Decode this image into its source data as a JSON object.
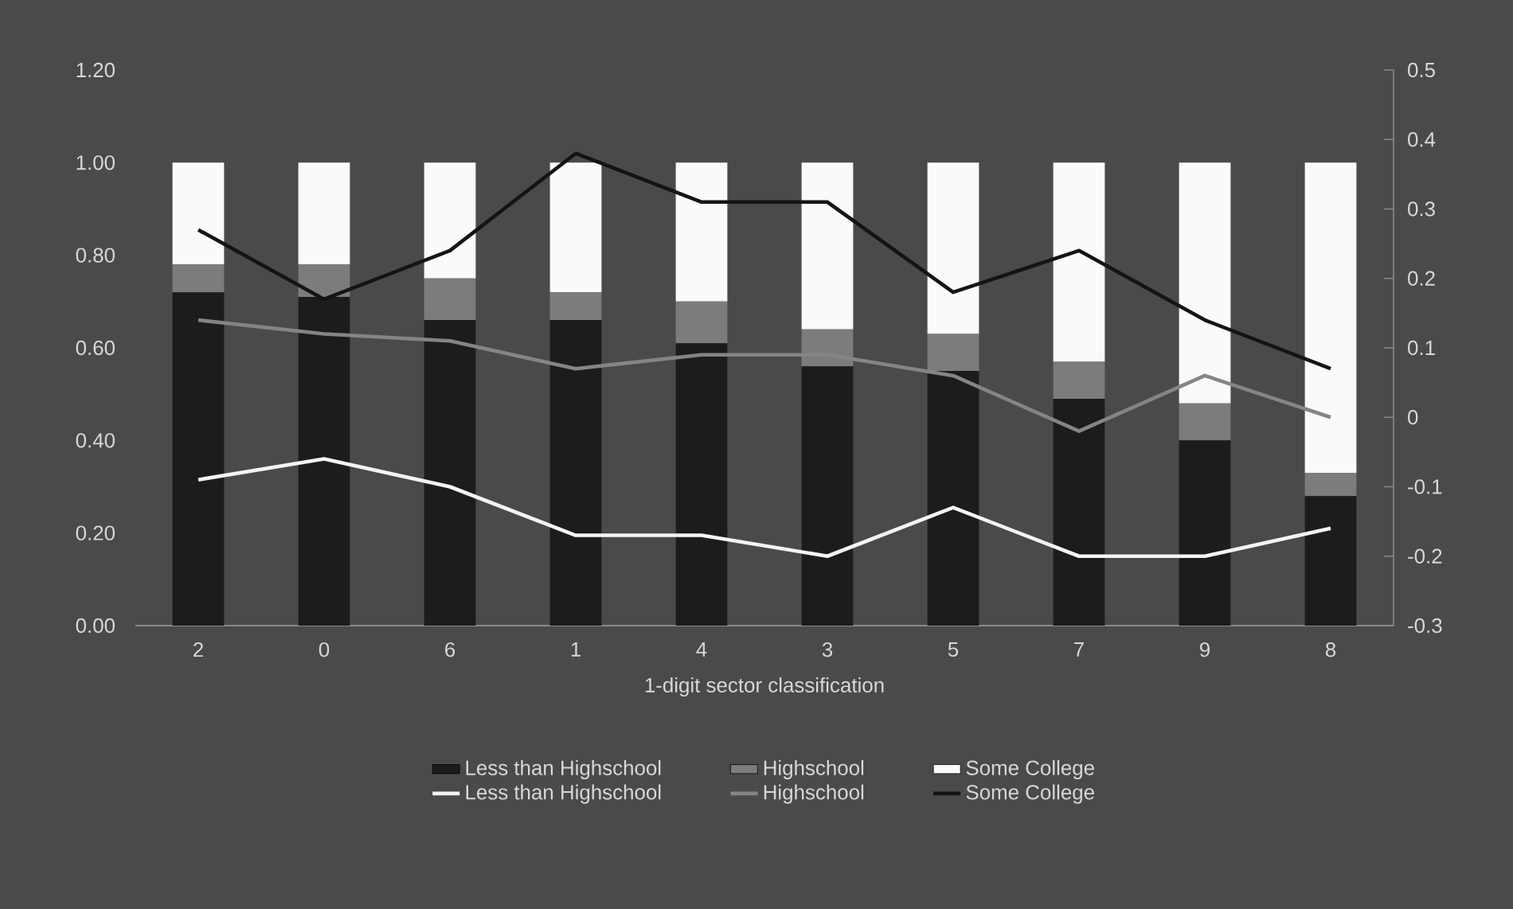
{
  "chart_data": {
    "type": "bar",
    "stacked": true,
    "xlabel": "1-digit sector classification",
    "categories": [
      "2",
      "0",
      "6",
      "1",
      "4",
      "3",
      "5",
      "7",
      "9",
      "8"
    ],
    "ylim": [
      0,
      1.2
    ],
    "yticks": [
      {
        "value": 0,
        "label": "0.00"
      },
      {
        "value": 0.2,
        "label": "0.20"
      },
      {
        "value": 0.4,
        "label": "0.40"
      },
      {
        "value": 0.6,
        "label": "0.60"
      },
      {
        "value": 0.8,
        "label": "0.80"
      },
      {
        "value": 1,
        "label": "1.00"
      },
      {
        "value": 1.2,
        "label": "1.20"
      }
    ],
    "y2lim": [
      -0.3,
      0.5
    ],
    "y2ticks": [
      -0.3,
      -0.2,
      -0.1,
      0,
      0.1,
      0.2,
      0.3,
      0.4,
      0.5
    ],
    "legend": "bottom",
    "series": [
      {
        "name": "Less than Highschool",
        "type": "bar",
        "color": "#1c1c1c",
        "values": [
          0.72,
          0.71,
          0.66,
          0.66,
          0.61,
          0.56,
          0.55,
          0.49,
          0.4,
          0.28
        ]
      },
      {
        "name": "Highschool",
        "type": "bar",
        "color": "#7c7c7c",
        "values": [
          0.06,
          0.07,
          0.09,
          0.06,
          0.09,
          0.08,
          0.08,
          0.08,
          0.08,
          0.05
        ]
      },
      {
        "name": "Some College",
        "type": "bar",
        "color": "#fafafa",
        "values": [
          0.22,
          0.22,
          0.25,
          0.28,
          0.3,
          0.36,
          0.37,
          0.43,
          0.52,
          0.67
        ]
      },
      {
        "name": "Less than Highschool",
        "type": "line",
        "axis": "y2",
        "color": "#f4f4f4",
        "values": [
          -0.09,
          -0.06,
          -0.1,
          -0.17,
          -0.17,
          -0.2,
          -0.13,
          -0.2,
          -0.2,
          -0.16
        ]
      },
      {
        "name": "Highschool",
        "type": "line",
        "axis": "y2",
        "color": "#858585",
        "values": [
          0.14,
          0.12,
          0.11,
          0.07,
          0.09,
          0.09,
          0.06,
          -0.02,
          0.06,
          0.0
        ]
      },
      {
        "name": "Some College",
        "type": "line",
        "axis": "y2",
        "color": "#141414",
        "values": [
          0.27,
          0.17,
          0.24,
          0.38,
          0.31,
          0.31,
          0.18,
          0.24,
          0.14,
          0.07
        ]
      }
    ]
  }
}
